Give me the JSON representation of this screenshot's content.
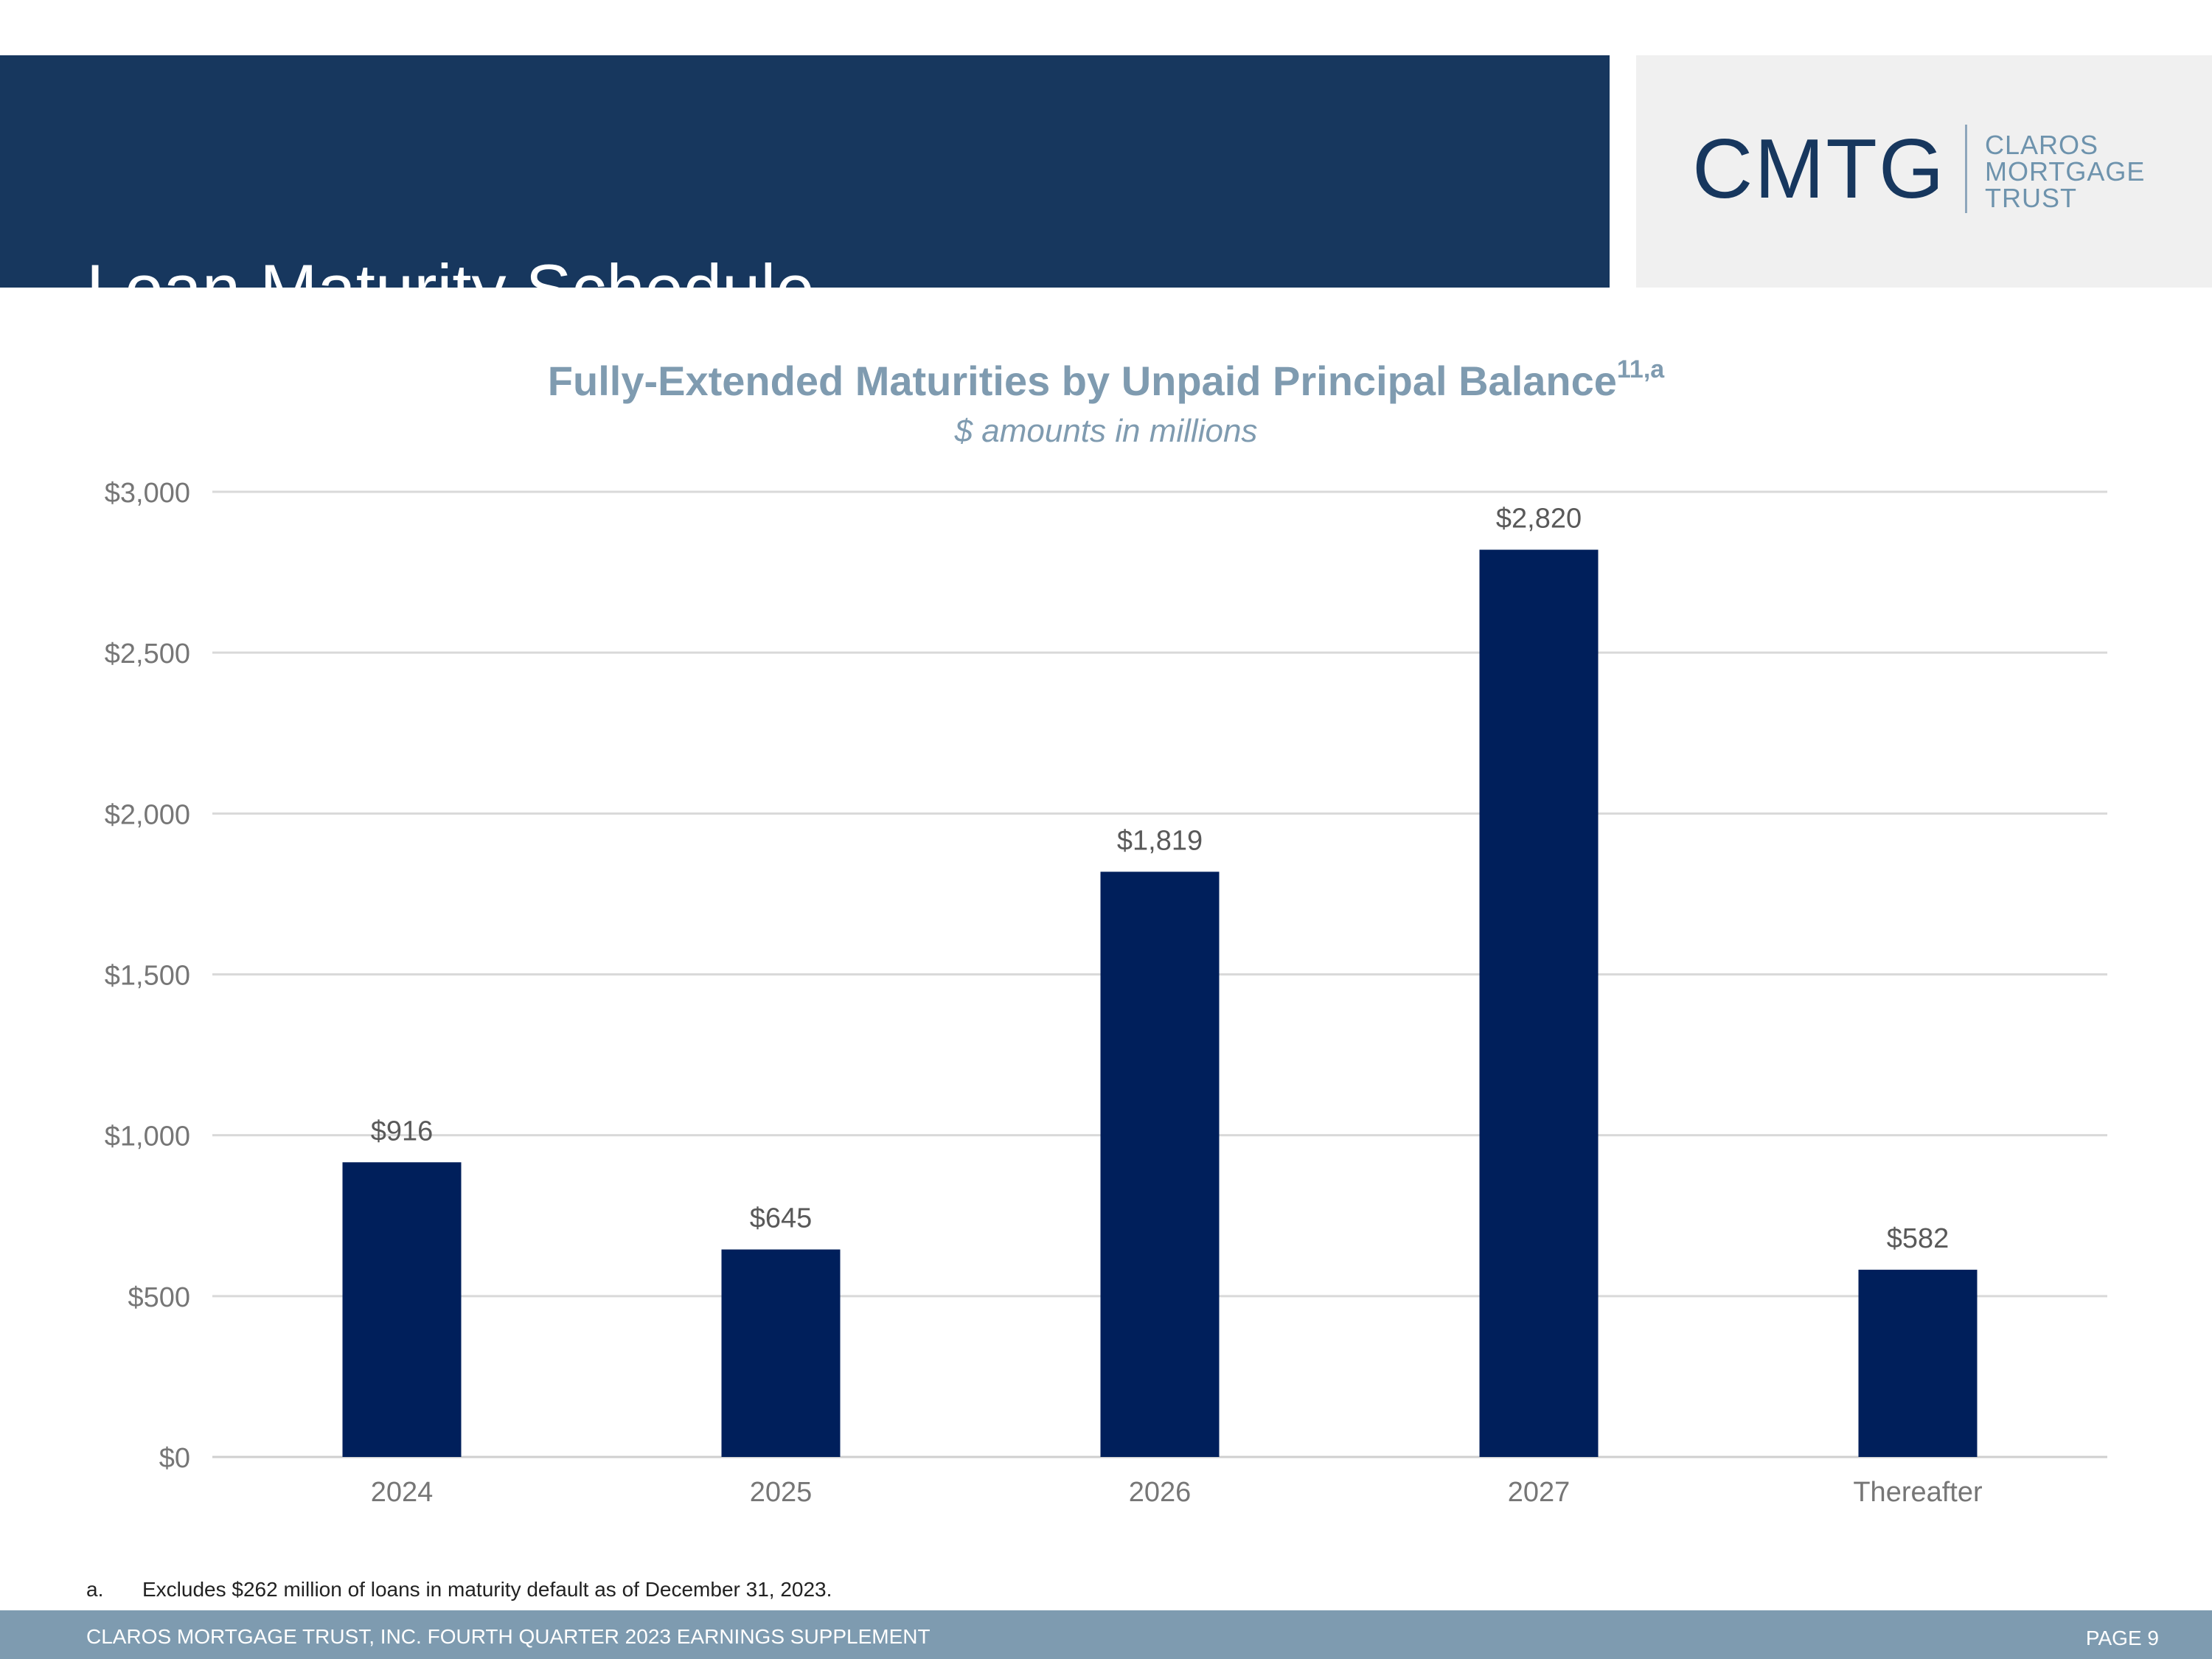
{
  "header": {
    "title": "Loan Maturity Schedule"
  },
  "logo": {
    "mark": "CMTG",
    "lines": [
      "CLAROS",
      "MORTGAGE",
      "TRUST"
    ]
  },
  "chart_data": {
    "type": "bar",
    "title": "Fully-Extended Maturities by Unpaid Principal Balance",
    "title_superscript": "11,a",
    "subtitle": "$ amounts in millions",
    "categories": [
      "2024",
      "2025",
      "2026",
      "2027",
      "Thereafter"
    ],
    "values": [
      916,
      645,
      1819,
      2820,
      582
    ],
    "value_labels": [
      "$916",
      "$645",
      "$1,819",
      "$2,820",
      "$582"
    ],
    "xlabel": "",
    "ylabel": "",
    "ylim": [
      0,
      3000
    ],
    "yticks": [
      0,
      500,
      1000,
      1500,
      2000,
      2500,
      3000
    ],
    "ytick_labels": [
      "$0",
      "$500",
      "$1,000",
      "$1,500",
      "$2,000",
      "$2,500",
      "$3,000"
    ],
    "grid": true,
    "bar_color": "#001f5b"
  },
  "footnote": {
    "marker": "a.",
    "text": "Excludes $262 million of loans in maturity default as of December 31, 2023."
  },
  "footer": {
    "text": "CLAROS MORTGAGE TRUST, INC. FOURTH QUARTER 2023 EARNINGS SUPPLEMENT",
    "page": "PAGE 9"
  }
}
